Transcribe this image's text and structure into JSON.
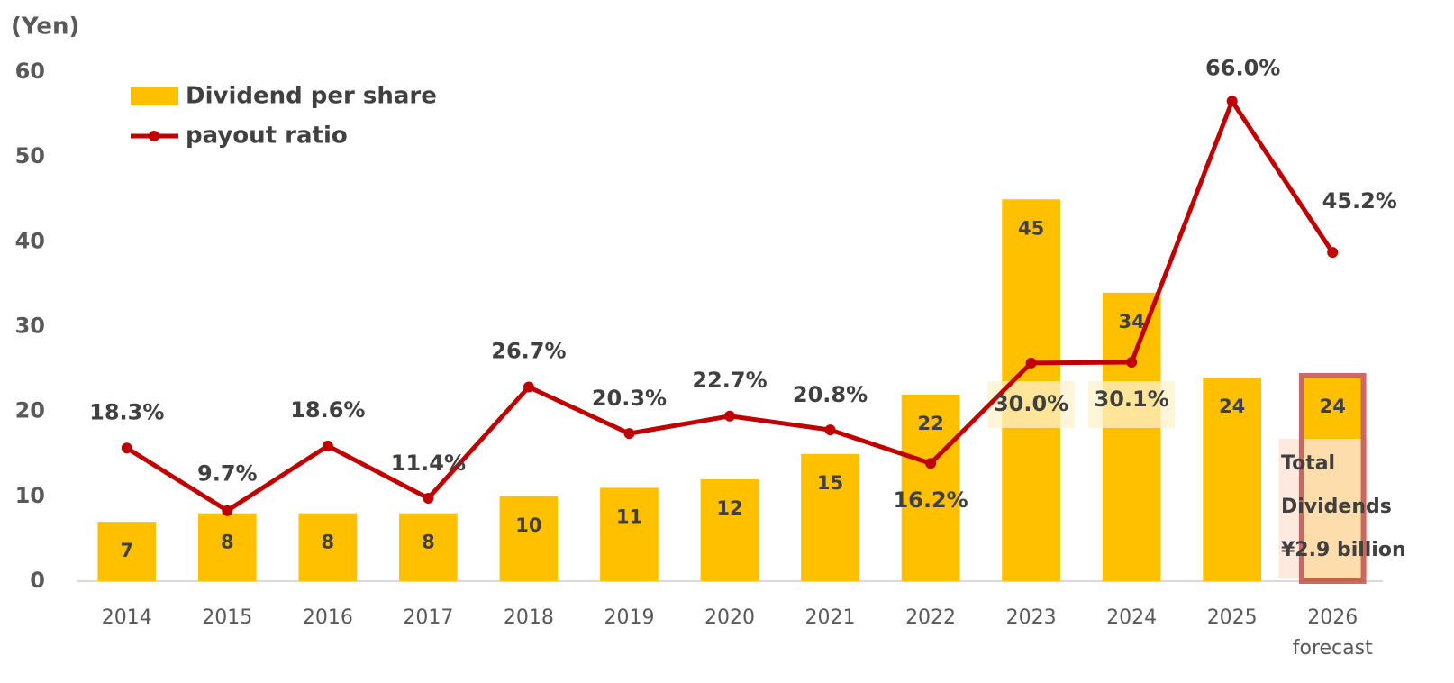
{
  "chart_data": {
    "type": "bar",
    "y_axis_label": "(Yen)",
    "categories": [
      "2014",
      "2015",
      "2016",
      "2017",
      "2018",
      "2019",
      "2020",
      "2021",
      "2022",
      "2023",
      "2024",
      "2025",
      "2026"
    ],
    "category_note": "forecast",
    "series": [
      {
        "name": "Dividend per share",
        "type": "bar",
        "color": "#FFC000",
        "values": [
          7,
          8,
          8,
          8,
          10,
          11,
          12,
          15,
          22,
          45,
          34,
          24,
          24
        ]
      },
      {
        "name": "payout ratio",
        "type": "line",
        "axis": "y2",
        "color": "#C00000",
        "values": [
          18.3,
          9.7,
          18.6,
          11.4,
          26.7,
          20.3,
          22.7,
          20.8,
          16.2,
          30.0,
          30.1,
          66.0,
          45.2
        ],
        "value_labels": [
          "18.3%",
          "9.7%",
          "18.6%",
          "11.4%",
          "26.7%",
          "20.3%",
          "22.7%",
          "20.8%",
          "16.2%",
          "30.0%",
          "30.1%",
          "66.0%",
          "45.2%"
        ]
      }
    ],
    "ylim": [
      0,
      60
    ],
    "yticks": [
      0,
      10,
      20,
      30,
      40,
      50,
      60
    ],
    "y2lim": [
      0,
      70
    ],
    "legend": "top-left",
    "annotation": [
      "Total",
      "Dividends",
      "¥2.9 billion"
    ]
  }
}
